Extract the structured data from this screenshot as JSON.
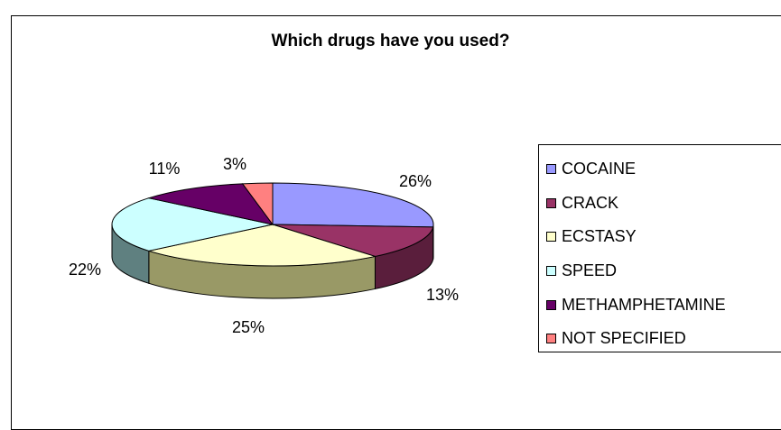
{
  "chart_data": {
    "type": "pie",
    "title": "Which drugs have you used?",
    "categories": [
      "COCAINE",
      "CRACK",
      "ECSTASY",
      "SPEED",
      "METHAMPHETAMINE",
      "NOT SPECIFIED"
    ],
    "values": [
      26,
      13,
      25,
      22,
      11,
      3
    ],
    "value_labels": [
      "26%",
      "13%",
      "25%",
      "22%",
      "11%",
      "3%"
    ],
    "colors": [
      "#9999FF",
      "#993366",
      "#FFFFCC",
      "#CCFFFF",
      "#660066",
      "#FF8080"
    ],
    "side_colors": [
      "#5A5A99",
      "#5A1E3C",
      "#999966",
      "#5F8080",
      "#330033",
      "#994D4D"
    ],
    "legend_position": "right",
    "three_d": true
  }
}
